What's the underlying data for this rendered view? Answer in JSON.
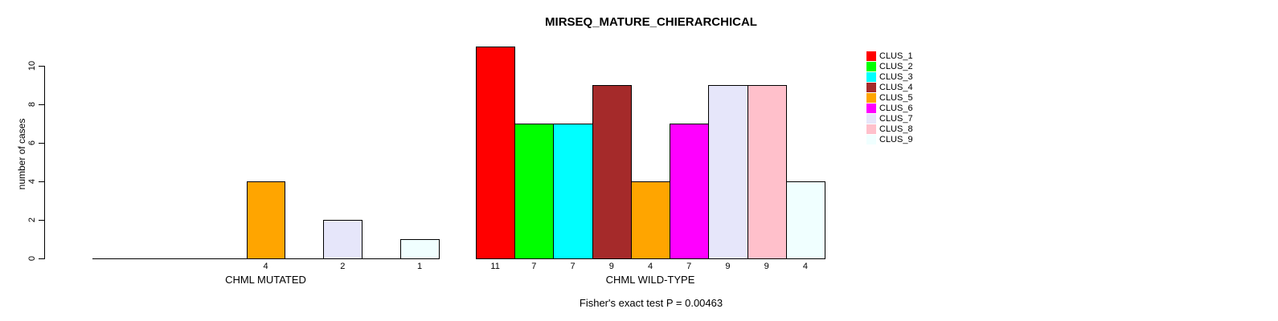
{
  "chart_data": {
    "type": "bar",
    "title": "MIRSEQ_MATURE_CHIERARCHICAL",
    "ylabel": "number of cases",
    "xlabel": "",
    "yticks": [
      0,
      2,
      4,
      6,
      8,
      10
    ],
    "ylim": [
      0,
      11
    ],
    "grid": false,
    "bar_value_labels_shown": true,
    "categories": [
      "CLUS_1",
      "CLUS_2",
      "CLUS_3",
      "CLUS_4",
      "CLUS_5",
      "CLUS_6",
      "CLUS_7",
      "CLUS_8",
      "CLUS_9"
    ],
    "cluster_colors": [
      "#FF0000",
      "#00FF00",
      "#00FFFF",
      "#A52A2A",
      "#FFA500",
      "#FF00FF",
      "#E6E6FA",
      "#FFC0CB",
      "#F0FFFF"
    ],
    "series": [
      {
        "name": "CHML MUTATED",
        "values": [
          0,
          0,
          0,
          0,
          4,
          0,
          2,
          0,
          1
        ]
      },
      {
        "name": "CHML WILD-TYPE",
        "values": [
          11,
          7,
          7,
          9,
          4,
          7,
          9,
          9,
          4
        ]
      }
    ],
    "legend": {
      "position": "right",
      "entries": [
        "CLUS_1",
        "CLUS_2",
        "CLUS_3",
        "CLUS_4",
        "CLUS_5",
        "CLUS_6",
        "CLUS_7",
        "CLUS_8",
        "CLUS_9"
      ]
    },
    "annotation": "Fisher's exact test P = 0.00463"
  }
}
